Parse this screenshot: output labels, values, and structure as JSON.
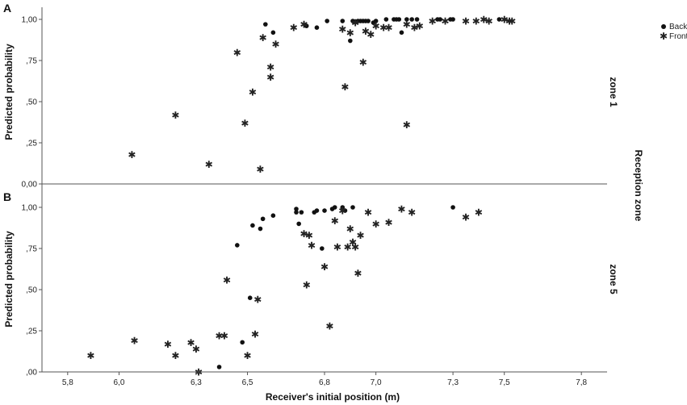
{
  "chart_data": {
    "type": "scatter",
    "panels": [
      {
        "letter": "A",
        "zone_label": "zone 1",
        "ylabel": "Predicted probability",
        "ylim": [
          0,
          1
        ],
        "yticks": [
          "0,00",
          ",25",
          ",50",
          ",75",
          "1,00"
        ],
        "series": [
          {
            "name": "Back",
            "marker": "dot",
            "points": [
              [
                6.57,
                0.97
              ],
              [
                6.6,
                0.92
              ],
              [
                6.73,
                0.96
              ],
              [
                6.77,
                0.95
              ],
              [
                6.81,
                0.99
              ],
              [
                6.87,
                0.99
              ],
              [
                6.9,
                0.87
              ],
              [
                6.91,
                0.99
              ],
              [
                6.93,
                0.99
              ],
              [
                6.94,
                0.99
              ],
              [
                6.95,
                0.99
              ],
              [
                6.96,
                0.99
              ],
              [
                6.97,
                0.99
              ],
              [
                6.99,
                0.98
              ],
              [
                7.0,
                0.99
              ],
              [
                7.04,
                1.0
              ],
              [
                7.07,
                1.0
              ],
              [
                7.08,
                1.0
              ],
              [
                7.09,
                1.0
              ],
              [
                7.1,
                0.92
              ],
              [
                7.12,
                1.0
              ],
              [
                7.14,
                1.0
              ],
              [
                7.16,
                1.0
              ],
              [
                7.24,
                1.0
              ],
              [
                7.25,
                1.0
              ],
              [
                7.29,
                1.0
              ],
              [
                7.3,
                1.0
              ],
              [
                7.48,
                1.0
              ]
            ]
          },
          {
            "name": "Front",
            "marker": "star",
            "points": [
              [
                6.05,
                0.18
              ],
              [
                6.22,
                0.42
              ],
              [
                6.35,
                0.12
              ],
              [
                6.46,
                0.8
              ],
              [
                6.49,
                0.37
              ],
              [
                6.52,
                0.56
              ],
              [
                6.55,
                0.09
              ],
              [
                6.56,
                0.89
              ],
              [
                6.59,
                0.71
              ],
              [
                6.59,
                0.65
              ],
              [
                6.61,
                0.85
              ],
              [
                6.68,
                0.95
              ],
              [
                6.72,
                0.97
              ],
              [
                6.87,
                0.94
              ],
              [
                6.88,
                0.59
              ],
              [
                6.9,
                0.92
              ],
              [
                6.92,
                0.98
              ],
              [
                6.95,
                0.74
              ],
              [
                6.96,
                0.93
              ],
              [
                6.98,
                0.91
              ],
              [
                7.0,
                0.96
              ],
              [
                7.03,
                0.95
              ],
              [
                7.05,
                0.95
              ],
              [
                7.12,
                0.97
              ],
              [
                7.12,
                0.36
              ],
              [
                7.15,
                0.95
              ],
              [
                7.17,
                0.96
              ],
              [
                7.22,
                0.99
              ],
              [
                7.27,
                0.99
              ],
              [
                7.35,
                0.99
              ],
              [
                7.39,
                0.99
              ],
              [
                7.42,
                1.0
              ],
              [
                7.44,
                0.99
              ],
              [
                7.5,
                1.0
              ],
              [
                7.52,
                0.99
              ],
              [
                7.53,
                0.99
              ]
            ]
          }
        ]
      },
      {
        "letter": "B",
        "zone_label": "zone 5",
        "ylabel": "Predicted probability",
        "ylim": [
          0,
          1
        ],
        "yticks": [
          ",00",
          ",25",
          ",50",
          ",75",
          "1,00"
        ],
        "series": [
          {
            "name": "Back",
            "marker": "dot",
            "points": [
              [
                6.39,
                0.03
              ],
              [
                6.46,
                0.77
              ],
              [
                6.48,
                0.18
              ],
              [
                6.51,
                0.45
              ],
              [
                6.52,
                0.89
              ],
              [
                6.55,
                0.87
              ],
              [
                6.56,
                0.93
              ],
              [
                6.6,
                0.95
              ],
              [
                6.69,
                0.99
              ],
              [
                6.69,
                0.97
              ],
              [
                6.7,
                0.9
              ],
              [
                6.71,
                0.97
              ],
              [
                6.76,
                0.97
              ],
              [
                6.77,
                0.98
              ],
              [
                6.79,
                0.75
              ],
              [
                6.8,
                0.98
              ],
              [
                6.83,
                0.99
              ],
              [
                6.84,
                1.0
              ],
              [
                6.87,
                1.0
              ],
              [
                6.88,
                0.98
              ],
              [
                6.91,
                1.0
              ],
              [
                7.3,
                1.0
              ]
            ]
          },
          {
            "name": "Front",
            "marker": "star",
            "points": [
              [
                5.89,
                0.1
              ],
              [
                6.06,
                0.19
              ],
              [
                6.19,
                0.17
              ],
              [
                6.22,
                0.1
              ],
              [
                6.28,
                0.18
              ],
              [
                6.3,
                0.14
              ],
              [
                6.31,
                0.0
              ],
              [
                6.39,
                0.22
              ],
              [
                6.41,
                0.22
              ],
              [
                6.42,
                0.56
              ],
              [
                6.5,
                0.1
              ],
              [
                6.53,
                0.23
              ],
              [
                6.54,
                0.44
              ],
              [
                6.72,
                0.84
              ],
              [
                6.73,
                0.53
              ],
              [
                6.74,
                0.83
              ],
              [
                6.75,
                0.77
              ],
              [
                6.8,
                0.64
              ],
              [
                6.82,
                0.28
              ],
              [
                6.84,
                0.92
              ],
              [
                6.85,
                0.76
              ],
              [
                6.87,
                0.98
              ],
              [
                6.89,
                0.76
              ],
              [
                6.9,
                0.87
              ],
              [
                6.91,
                0.79
              ],
              [
                6.92,
                0.76
              ],
              [
                6.93,
                0.6
              ],
              [
                6.94,
                0.83
              ],
              [
                6.97,
                0.97
              ],
              [
                7.0,
                0.9
              ],
              [
                7.05,
                0.91
              ],
              [
                7.1,
                0.99
              ],
              [
                7.14,
                0.97
              ],
              [
                7.35,
                0.94
              ],
              [
                7.4,
                0.97
              ]
            ]
          }
        ]
      }
    ],
    "xlabel": "Receiver's initial position (m)",
    "xlim": [
      5.7,
      7.9
    ],
    "xticks": [
      {
        "v": 5.8,
        "label": "5,8"
      },
      {
        "v": 6.0,
        "label": "6,0"
      },
      {
        "v": 6.3,
        "label": "6,3"
      },
      {
        "v": 6.5,
        "label": "6,5"
      },
      {
        "v": 6.8,
        "label": "6,8"
      },
      {
        "v": 7.0,
        "label": "7,0"
      },
      {
        "v": 7.3,
        "label": "7,3"
      },
      {
        "v": 7.5,
        "label": "7,5"
      },
      {
        "v": 7.8,
        "label": "7,8"
      }
    ],
    "facet_label": "Reception zone",
    "legend": {
      "position": "top-right",
      "entries": [
        {
          "label": "Back",
          "marker": "dot"
        },
        {
          "label": "Front",
          "marker": "star"
        }
      ]
    },
    "grid": false
  }
}
